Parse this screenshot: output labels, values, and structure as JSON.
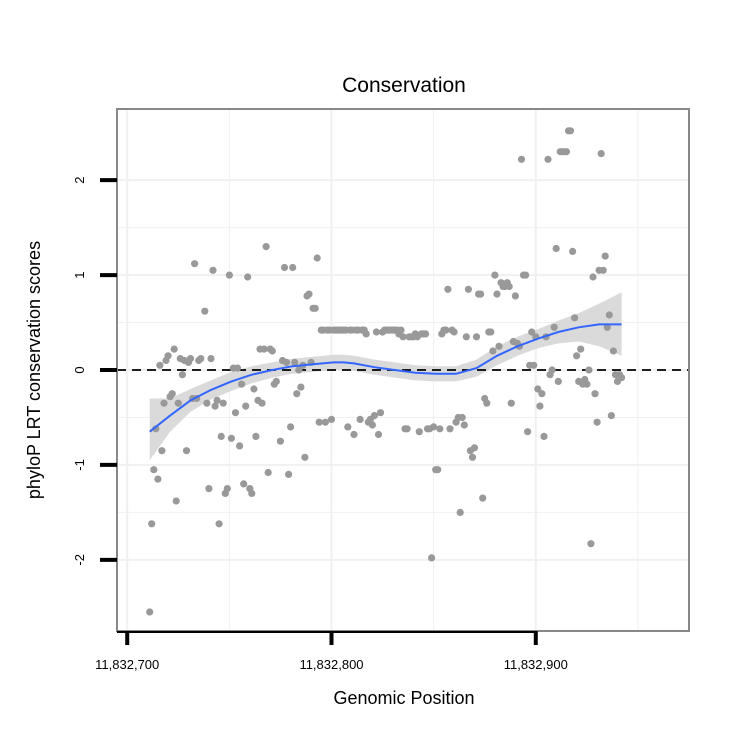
{
  "chart_data": {
    "type": "scatter",
    "title": "Conservation",
    "xlabel": "Genomic Position",
    "ylabel": "phyloP LRT conservation scores",
    "xlim": [
      11832695,
      11832975
    ],
    "ylim": [
      -2.75,
      2.75
    ],
    "x_ticks": [
      {
        "value": 11832700,
        "label": "11,832,700"
      },
      {
        "value": 11832800,
        "label": "11,832,800"
      },
      {
        "value": 11832900,
        "label": "11,832,900"
      }
    ],
    "y_ticks": [
      {
        "value": -2,
        "label": "-2"
      },
      {
        "value": -1,
        "label": "-1"
      },
      {
        "value": 0,
        "label": "0"
      },
      {
        "value": 1,
        "label": "1"
      },
      {
        "value": 2,
        "label": "2"
      }
    ],
    "grid": true,
    "reference_line": {
      "y": 0,
      "style": "dashed"
    },
    "colors": {
      "points": "#999999",
      "smooth": "#3366ff",
      "ribbon": "#d6d6d6",
      "grid": "#f0f0f0",
      "panel_border": "#888888",
      "ref_line": "#000000"
    },
    "points": [
      [
        11832711,
        -2.55
      ],
      [
        11832712,
        -1.62
      ],
      [
        11832713,
        -1.05
      ],
      [
        11832714,
        -0.62
      ],
      [
        11832715,
        -1.15
      ],
      [
        11832716,
        0.05
      ],
      [
        11832717,
        -0.85
      ],
      [
        11832718,
        -0.35
      ],
      [
        11832719,
        0.1
      ],
      [
        11832720,
        0.15
      ],
      [
        11832721,
        -0.28
      ],
      [
        11832722,
        -0.25
      ],
      [
        11832723,
        0.22
      ],
      [
        11832724,
        -1.38
      ],
      [
        11832725,
        -0.35
      ],
      [
        11832726,
        0.12
      ],
      [
        11832727,
        -0.05
      ],
      [
        11832728,
        0.1
      ],
      [
        11832729,
        -0.85
      ],
      [
        11832730,
        0.08
      ],
      [
        11832731,
        0.12
      ],
      [
        11832732,
        -0.3
      ],
      [
        11832733,
        1.12
      ],
      [
        11832734,
        -0.3
      ],
      [
        11832735,
        0.1
      ],
      [
        11832736,
        0.12
      ],
      [
        11832738,
        0.62
      ],
      [
        11832739,
        -0.35
      ],
      [
        11832740,
        -1.25
      ],
      [
        11832741,
        0.12
      ],
      [
        11832742,
        1.05
      ],
      [
        11832743,
        -0.38
      ],
      [
        11832744,
        -0.32
      ],
      [
        11832745,
        -1.62
      ],
      [
        11832746,
        -0.7
      ],
      [
        11832747,
        -0.35
      ],
      [
        11832748,
        -1.3
      ],
      [
        11832749,
        -1.25
      ],
      [
        11832750,
        1.0
      ],
      [
        11832751,
        -0.72
      ],
      [
        11832752,
        0.02
      ],
      [
        11832753,
        -0.45
      ],
      [
        11832754,
        0.02
      ],
      [
        11832755,
        -0.8
      ],
      [
        11832756,
        -0.15
      ],
      [
        11832757,
        -1.2
      ],
      [
        11832758,
        -0.38
      ],
      [
        11832759,
        0.98
      ],
      [
        11832760,
        -1.25
      ],
      [
        11832761,
        -1.3
      ],
      [
        11832762,
        -0.2
      ],
      [
        11832763,
        -0.7
      ],
      [
        11832764,
        -0.32
      ],
      [
        11832765,
        0.22
      ],
      [
        11832766,
        -0.35
      ],
      [
        11832767,
        0.22
      ],
      [
        11832768,
        1.3
      ],
      [
        11832769,
        -1.08
      ],
      [
        11832770,
        0.22
      ],
      [
        11832771,
        0.2
      ],
      [
        11832772,
        -0.15
      ],
      [
        11832773,
        -0.12
      ],
      [
        11832775,
        -0.75
      ],
      [
        11832776,
        0.1
      ],
      [
        11832777,
        1.08
      ],
      [
        11832778,
        0.08
      ],
      [
        11832779,
        -1.1
      ],
      [
        11832780,
        -0.6
      ],
      [
        11832781,
        1.08
      ],
      [
        11832782,
        0.08
      ],
      [
        11832783,
        -0.25
      ],
      [
        11832784,
        0.0
      ],
      [
        11832785,
        -0.18
      ],
      [
        11832786,
        0.05
      ],
      [
        11832787,
        -0.92
      ],
      [
        11832788,
        0.78
      ],
      [
        11832789,
        0.8
      ],
      [
        11832790,
        0.08
      ],
      [
        11832791,
        0.65
      ],
      [
        11832792,
        0.65
      ],
      [
        11832793,
        1.18
      ],
      [
        11832794,
        -0.55
      ],
      [
        11832795,
        0.42
      ],
      [
        11832796,
        0.42
      ],
      [
        11832797,
        -0.55
      ],
      [
        11832798,
        0.42
      ],
      [
        11832799,
        0.42
      ],
      [
        11832800,
        -0.52
      ],
      [
        11832801,
        0.42
      ],
      [
        11832802,
        0.42
      ],
      [
        11832803,
        0.42
      ],
      [
        11832804,
        0.42
      ],
      [
        11832805,
        0.42
      ],
      [
        11832806,
        0.42
      ],
      [
        11832807,
        0.42
      ],
      [
        11832808,
        -0.6
      ],
      [
        11832809,
        0.42
      ],
      [
        11832810,
        0.42
      ],
      [
        11832811,
        -0.68
      ],
      [
        11832812,
        0.42
      ],
      [
        11832813,
        0.42
      ],
      [
        11832814,
        -0.52
      ],
      [
        11832815,
        0.42
      ],
      [
        11832816,
        0.42
      ],
      [
        11832817,
        0.38
      ],
      [
        11832818,
        -0.55
      ],
      [
        11832819,
        -0.52
      ],
      [
        11832820,
        -0.58
      ],
      [
        11832821,
        -0.48
      ],
      [
        11832822,
        0.4
      ],
      [
        11832823,
        -0.68
      ],
      [
        11832824,
        -0.45
      ],
      [
        11832825,
        0.4
      ],
      [
        11832826,
        0.42
      ],
      [
        11832827,
        0.42
      ],
      [
        11832828,
        0.42
      ],
      [
        11832829,
        0.42
      ],
      [
        11832830,
        0.42
      ],
      [
        11832831,
        0.42
      ],
      [
        11832832,
        0.42
      ],
      [
        11832833,
        0.38
      ],
      [
        11832834,
        0.42
      ],
      [
        11832835,
        0.35
      ],
      [
        11832836,
        -0.62
      ],
      [
        11832837,
        -0.62
      ],
      [
        11832838,
        0.35
      ],
      [
        11832839,
        0.35
      ],
      [
        11832840,
        0.35
      ],
      [
        11832841,
        0.38
      ],
      [
        11832842,
        0.35
      ],
      [
        11832843,
        -0.65
      ],
      [
        11832844,
        0.38
      ],
      [
        11832845,
        0.38
      ],
      [
        11832846,
        0.38
      ],
      [
        11832847,
        -0.62
      ],
      [
        11832848,
        -0.62
      ],
      [
        11832849,
        -1.98
      ],
      [
        11832850,
        -0.6
      ],
      [
        11832851,
        -1.05
      ],
      [
        11832852,
        -1.05
      ],
      [
        11832853,
        -0.62
      ],
      [
        11832854,
        0.38
      ],
      [
        11832855,
        0.42
      ],
      [
        11832856,
        0.42
      ],
      [
        11832857,
        0.85
      ],
      [
        11832858,
        -0.62
      ],
      [
        11832859,
        0.42
      ],
      [
        11832860,
        0.4
      ],
      [
        11832861,
        -0.55
      ],
      [
        11832862,
        -0.5
      ],
      [
        11832863,
        -1.5
      ],
      [
        11832864,
        -0.5
      ],
      [
        11832865,
        -0.58
      ],
      [
        11832866,
        0.35
      ],
      [
        11832867,
        0.85
      ],
      [
        11832868,
        -0.85
      ],
      [
        11832869,
        -0.92
      ],
      [
        11832870,
        -0.82
      ],
      [
        11832871,
        0.35
      ],
      [
        11832872,
        0.8
      ],
      [
        11832873,
        0.8
      ],
      [
        11832874,
        -1.35
      ],
      [
        11832875,
        -0.3
      ],
      [
        11832876,
        -0.35
      ],
      [
        11832877,
        0.4
      ],
      [
        11832878,
        0.4
      ],
      [
        11832879,
        0.2
      ],
      [
        11832880,
        1.0
      ],
      [
        11832881,
        0.8
      ],
      [
        11832882,
        0.25
      ],
      [
        11832883,
        0.92
      ],
      [
        11832884,
        0.88
      ],
      [
        11832885,
        0.88
      ],
      [
        11832886,
        0.92
      ],
      [
        11832887,
        0.88
      ],
      [
        11832888,
        -0.35
      ],
      [
        11832889,
        0.3
      ],
      [
        11832890,
        0.78
      ],
      [
        11832891,
        0.28
      ],
      [
        11832892,
        0.25
      ],
      [
        11832893,
        2.22
      ],
      [
        11832894,
        1.0
      ],
      [
        11832895,
        1.0
      ],
      [
        11832896,
        -0.65
      ],
      [
        11832897,
        0.05
      ],
      [
        11832898,
        0.4
      ],
      [
        11832899,
        0.05
      ],
      [
        11832900,
        0.35
      ],
      [
        11832901,
        -0.2
      ],
      [
        11832902,
        -0.38
      ],
      [
        11832903,
        -0.25
      ],
      [
        11832904,
        -0.7
      ],
      [
        11832905,
        0.35
      ],
      [
        11832906,
        2.22
      ],
      [
        11832907,
        -0.05
      ],
      [
        11832908,
        0.0
      ],
      [
        11832909,
        0.45
      ],
      [
        11832910,
        1.28
      ],
      [
        11832911,
        -0.12
      ],
      [
        11832912,
        2.3
      ],
      [
        11832913,
        2.3
      ],
      [
        11832914,
        2.3
      ],
      [
        11832915,
        2.3
      ],
      [
        11832916,
        2.52
      ],
      [
        11832917,
        2.52
      ],
      [
        11832918,
        1.25
      ],
      [
        11832919,
        0.55
      ],
      [
        11832920,
        0.15
      ],
      [
        11832921,
        -0.12
      ],
      [
        11832922,
        0.22
      ],
      [
        11832923,
        -0.15
      ],
      [
        11832924,
        -0.1
      ],
      [
        11832925,
        -0.15
      ],
      [
        11832926,
        0.0
      ],
      [
        11832927,
        -1.83
      ],
      [
        11832928,
        0.98
      ],
      [
        11832929,
        -0.25
      ],
      [
        11832930,
        -0.55
      ],
      [
        11832931,
        1.05
      ],
      [
        11832932,
        2.28
      ],
      [
        11832933,
        1.05
      ],
      [
        11832934,
        1.2
      ],
      [
        11832935,
        0.45
      ],
      [
        11832936,
        0.58
      ],
      [
        11832937,
        -0.48
      ],
      [
        11832938,
        0.2
      ],
      [
        11832939,
        -0.05
      ],
      [
        11832940,
        -0.12
      ],
      [
        11832941,
        -0.05
      ],
      [
        11832942,
        -0.08
      ]
    ],
    "smooth_line": {
      "x": [
        11832711,
        11832721,
        11832731,
        11832741,
        11832751,
        11832761,
        11832771,
        11832781,
        11832791,
        11832801,
        11832806,
        11832811,
        11832821,
        11832831,
        11832841,
        11832851,
        11832861,
        11832871,
        11832881,
        11832891,
        11832901,
        11832911,
        11832921,
        11832931,
        11832942
      ],
      "y": [
        -0.65,
        -0.48,
        -0.32,
        -0.21,
        -0.12,
        -0.05,
        0.0,
        0.04,
        0.06,
        0.08,
        0.08,
        0.07,
        0.03,
        0.0,
        -0.03,
        -0.04,
        -0.04,
        0.02,
        0.15,
        0.25,
        0.33,
        0.4,
        0.45,
        0.48,
        0.48
      ],
      "lower": [
        -0.95,
        -0.65,
        -0.44,
        -0.31,
        -0.22,
        -0.14,
        -0.08,
        -0.04,
        -0.02,
        0.0,
        0.0,
        -0.01,
        -0.05,
        -0.08,
        -0.11,
        -0.12,
        -0.12,
        -0.07,
        0.05,
        0.15,
        0.23,
        0.28,
        0.3,
        0.25,
        0.15
      ],
      "upper": [
        -0.3,
        -0.3,
        -0.2,
        -0.11,
        -0.02,
        0.04,
        0.08,
        0.12,
        0.14,
        0.16,
        0.16,
        0.15,
        0.11,
        0.08,
        0.05,
        0.04,
        0.04,
        0.11,
        0.25,
        0.35,
        0.43,
        0.52,
        0.6,
        0.7,
        0.82
      ]
    }
  }
}
